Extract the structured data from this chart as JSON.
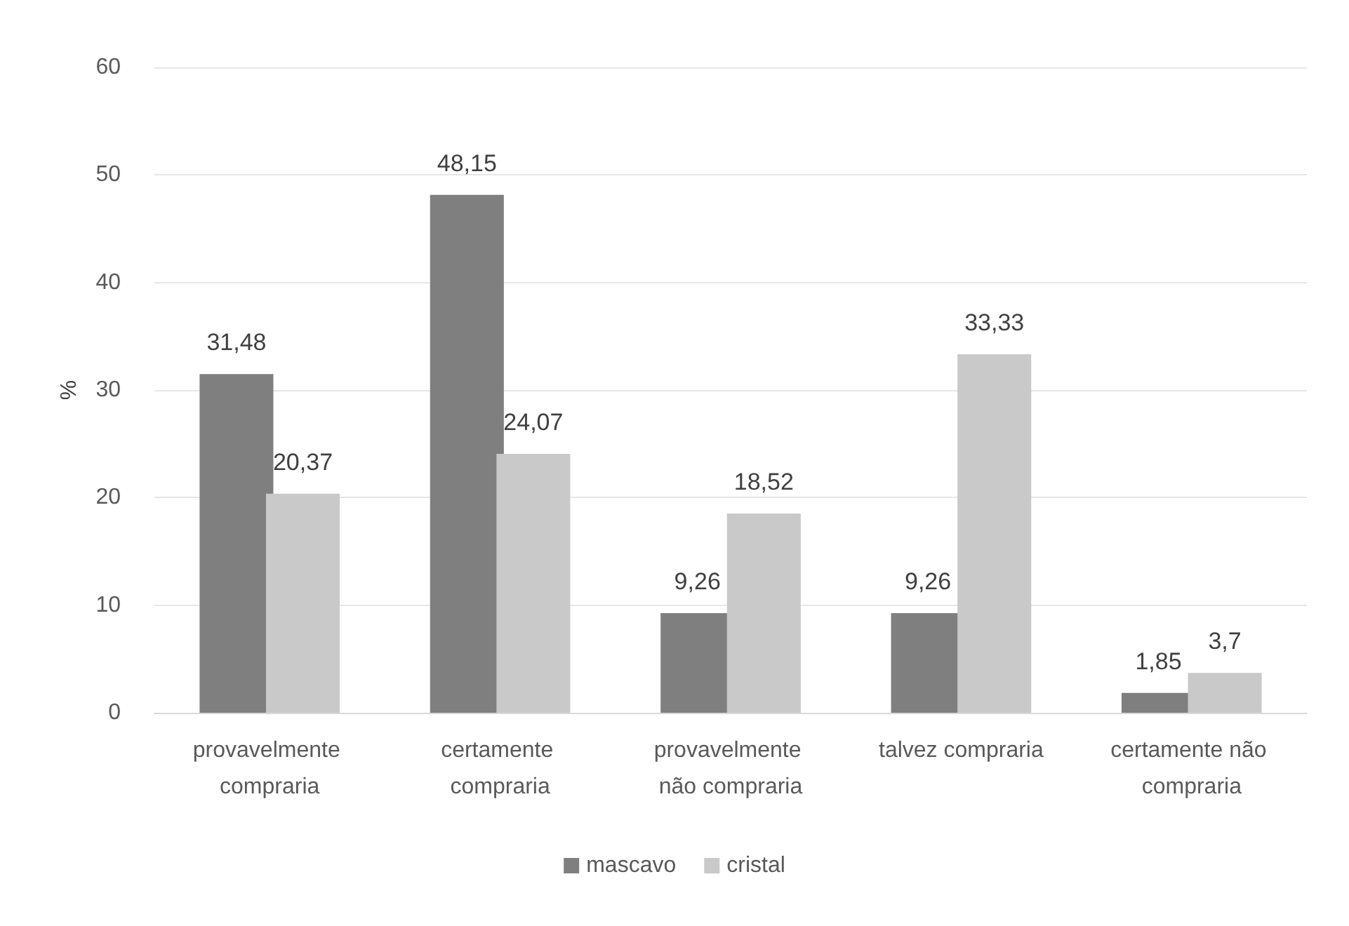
{
  "chart_data": {
    "type": "bar",
    "ylabel": "%",
    "categories": [
      "provavelmente compraria",
      "certamente compraria",
      "provavelmente não compraria",
      "talvez compraria",
      "certamente não compraria"
    ],
    "series": [
      {
        "name": "mascavo",
        "color": "#7f7f7f",
        "values": [
          31.48,
          48.15,
          9.26,
          9.26,
          1.85
        ],
        "value_labels": [
          "31,48",
          "48,15",
          "9,26",
          "9,26",
          "1,85"
        ]
      },
      {
        "name": "cristal",
        "color": "#c9c9c9",
        "values": [
          20.37,
          24.07,
          18.52,
          33.33,
          3.7
        ],
        "value_labels": [
          "20,37",
          "24,07",
          "18,52",
          "33,33",
          "3,7"
        ]
      }
    ],
    "ylim": [
      0,
      60
    ],
    "yticks": [
      0,
      10,
      20,
      30,
      40,
      50,
      60
    ],
    "grid": "y",
    "legend": "bottom"
  }
}
